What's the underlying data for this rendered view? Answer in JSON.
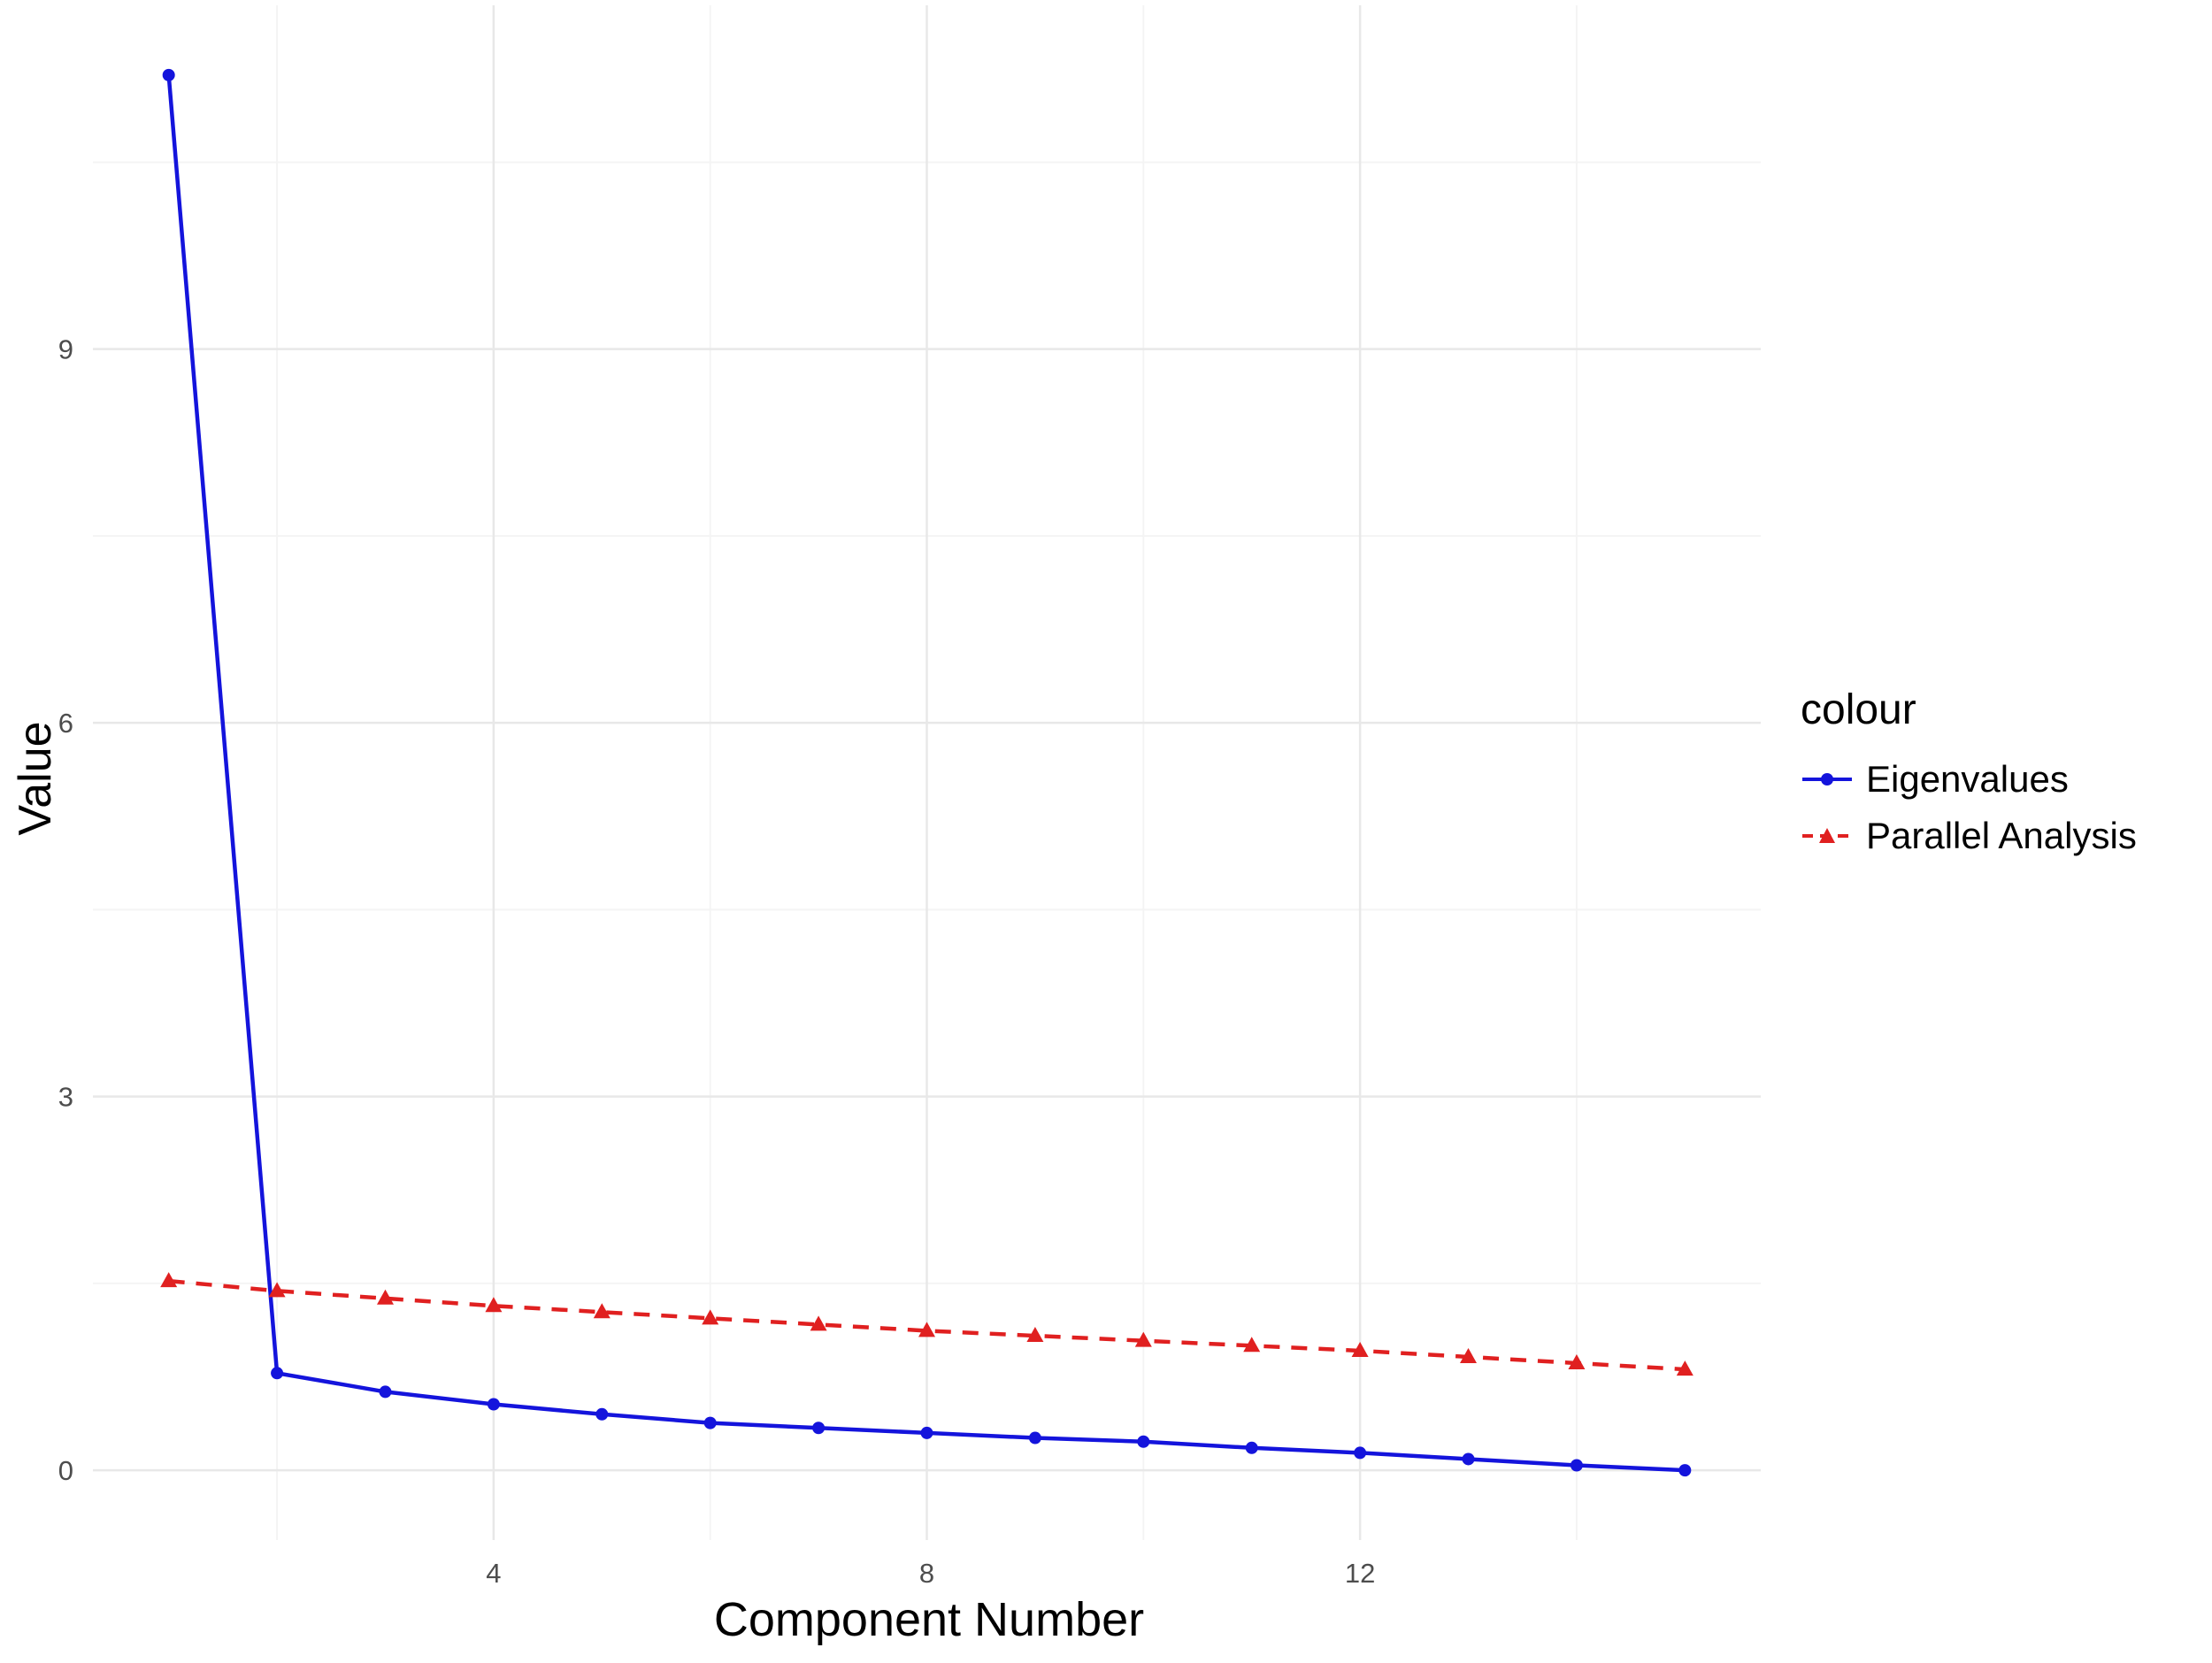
{
  "chart_data": {
    "type": "line",
    "title": "",
    "xlabel": "Component Number",
    "ylabel": "Value",
    "legend_title": "colour",
    "legend_position": "right",
    "grid": true,
    "x": [
      1,
      2,
      3,
      4,
      5,
      6,
      7,
      8,
      9,
      10,
      11,
      12,
      13,
      14,
      15
    ],
    "series": [
      {
        "name": "Eigenvalues",
        "color": "#1414dc",
        "line_style": "solid",
        "marker": "circle",
        "values": [
          11.2,
          0.78,
          0.63,
          0.53,
          0.45,
          0.38,
          0.34,
          0.3,
          0.26,
          0.23,
          0.18,
          0.14,
          0.09,
          0.04,
          0.0
        ]
      },
      {
        "name": "Parallel Analysis",
        "color": "#e02020",
        "line_style": "dashed",
        "marker": "triangle",
        "values": [
          1.52,
          1.44,
          1.38,
          1.32,
          1.27,
          1.22,
          1.17,
          1.12,
          1.08,
          1.04,
          1.0,
          0.96,
          0.91,
          0.86,
          0.81
        ]
      }
    ],
    "x_ticks": [
      4,
      8,
      12
    ],
    "y_ticks": [
      0,
      3,
      6,
      9
    ],
    "x_minor": [
      2,
      6,
      10,
      14
    ],
    "y_minor": [
      1.5,
      4.5,
      7.5,
      10.5
    ],
    "x_domain": [
      0.3,
      15.7
    ],
    "y_domain": [
      -0.56,
      11.76
    ]
  },
  "colors": {
    "background": "#ffffff",
    "grid_major": "#e8e8e8",
    "grid_minor": "#f4f4f4",
    "tick_label": "#4d4d4d",
    "axis_title": "#000000"
  }
}
